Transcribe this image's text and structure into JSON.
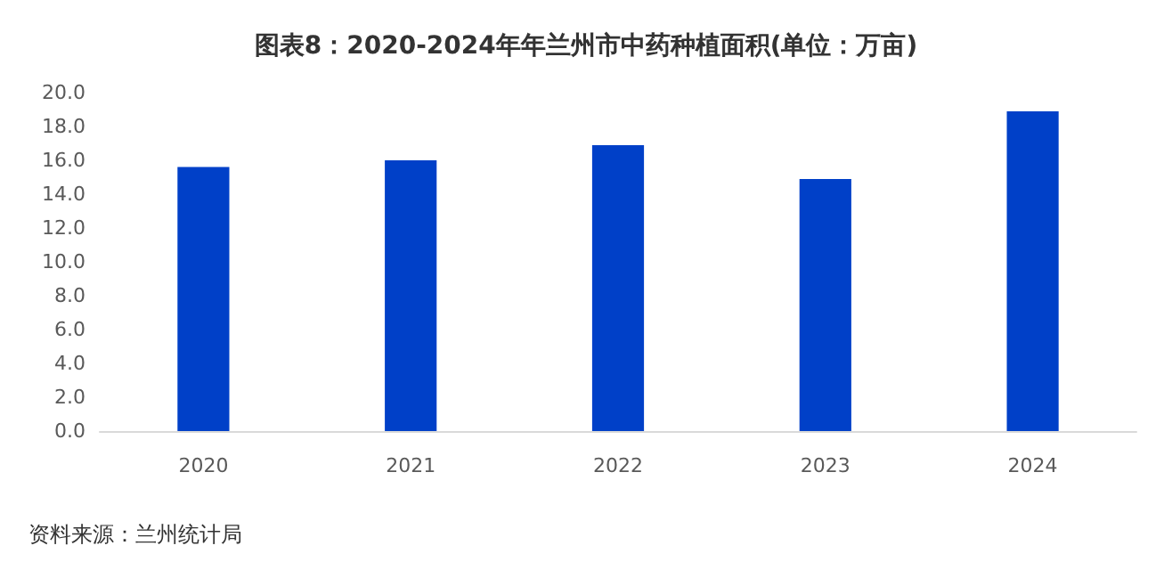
{
  "chart_data": {
    "type": "bar",
    "title": "图表8：2020-2024年年兰州市中药种植面积(单位：万亩)",
    "categories": [
      "2020",
      "2021",
      "2022",
      "2023",
      "2024"
    ],
    "values": [
      15.6,
      16.0,
      16.9,
      14.9,
      18.9
    ],
    "color": "#0040c8",
    "ylim": [
      0,
      20
    ],
    "yticks": [
      {
        "value": 0,
        "label": "0.0"
      },
      {
        "value": 2,
        "label": "2.0"
      },
      {
        "value": 4,
        "label": "4.0"
      },
      {
        "value": 6,
        "label": "6.0"
      },
      {
        "value": 8,
        "label": "8.0"
      },
      {
        "value": 10,
        "label": "10.0"
      },
      {
        "value": 12,
        "label": "12.0"
      },
      {
        "value": 14,
        "label": "14.0"
      },
      {
        "value": 16,
        "label": "16.0"
      },
      {
        "value": 18,
        "label": "18.0"
      },
      {
        "value": 20,
        "label": "20.0"
      }
    ],
    "grid": false,
    "annotations": [
      "资料来源：兰州统计局"
    ]
  }
}
